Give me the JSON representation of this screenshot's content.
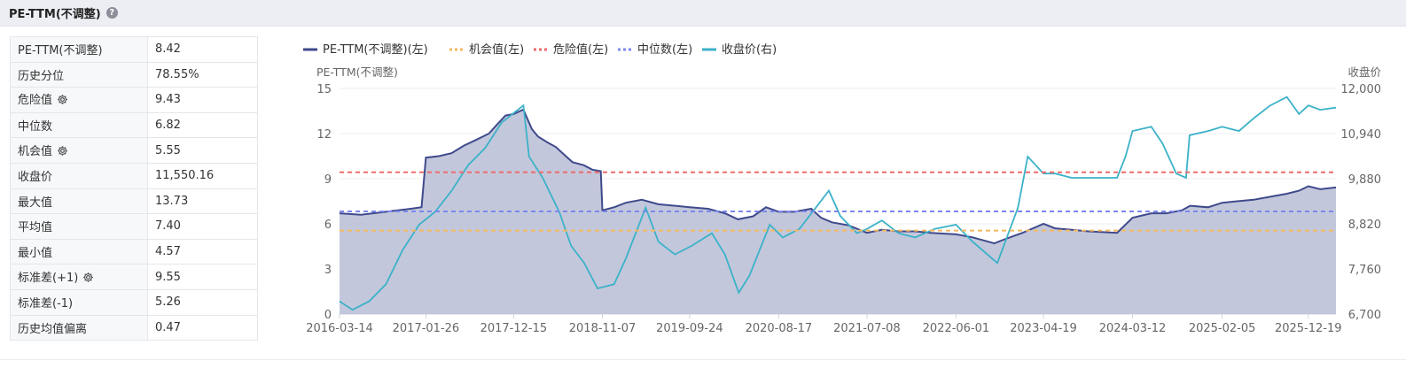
{
  "header": {
    "title": "PE-TTM(不调整)",
    "help_icon": "help-icon"
  },
  "stats": [
    {
      "label": "PE-TTM(不调整)",
      "value": "8.42",
      "gear": false
    },
    {
      "label": "历史分位",
      "value": "78.55%",
      "gear": false
    },
    {
      "label": "危险值",
      "value": "9.43",
      "gear": true
    },
    {
      "label": "中位数",
      "value": "6.82",
      "gear": false
    },
    {
      "label": "机会值",
      "value": "5.55",
      "gear": true
    },
    {
      "label": "收盘价",
      "value": "11,550.16",
      "gear": false
    },
    {
      "label": "最大值",
      "value": "13.73",
      "gear": false
    },
    {
      "label": "平均值",
      "value": "7.40",
      "gear": false
    },
    {
      "label": "最小值",
      "value": "4.57",
      "gear": false
    },
    {
      "label": "标准差(+1)",
      "value": "9.55",
      "gear": true
    },
    {
      "label": "标准差(-1)",
      "value": "5.26",
      "gear": false
    },
    {
      "label": "历史均值偏离",
      "value": "0.47",
      "gear": false
    }
  ],
  "chart_data": {
    "type": "line",
    "legend_position": "top",
    "legend": [
      {
        "name": "PE-TTM(不调整)(左)",
        "style": "solid",
        "color": "#3f4a8c"
      },
      {
        "name": "机会值(左)",
        "style": "dotted",
        "color": "#f5b860"
      },
      {
        "name": "危险值(左)",
        "style": "dotted",
        "color": "#f06a6a"
      },
      {
        "name": "中位数(左)",
        "style": "dotted",
        "color": "#7b87ee"
      },
      {
        "name": "收盘价(右)",
        "style": "solid",
        "color": "#3bb2c8"
      }
    ],
    "y_left": {
      "label": "PE-TTM(不调整)",
      "min": 0,
      "max": 15,
      "ticks": [
        "0",
        "3",
        "6",
        "9",
        "12",
        "15"
      ]
    },
    "y_right": {
      "label": "收盘价",
      "min": 6700,
      "max": 12000,
      "ticks": [
        "6,700",
        "7,760",
        "8,820",
        "9,880",
        "10,940",
        "12,000"
      ]
    },
    "x_ticks": [
      "2016-03-14",
      "2017-01-26",
      "2017-12-15",
      "2018-11-07",
      "2019-09-24",
      "2020-08-17",
      "2021-07-08",
      "2022-06-01",
      "2023-04-19",
      "2024-03-12",
      "2025-02-05",
      "2025-12-19"
    ],
    "x_range": [
      "2016-03-14",
      "2026-03-31"
    ],
    "grid": true,
    "reference_lines": {
      "danger": 9.43,
      "median": 6.82,
      "opportunity": 5.55
    },
    "pe_series": {
      "name": "PE-TTM(不调整)",
      "points": [
        [
          "2016-03-14",
          6.7
        ],
        [
          "2016-06-01",
          6.6
        ],
        [
          "2016-09-01",
          6.8
        ],
        [
          "2016-12-01",
          7.0
        ],
        [
          "2017-01-10",
          7.1
        ],
        [
          "2017-01-26",
          10.4
        ],
        [
          "2017-03-15",
          10.5
        ],
        [
          "2017-05-01",
          10.7
        ],
        [
          "2017-06-15",
          11.2
        ],
        [
          "2017-08-01",
          11.6
        ],
        [
          "2017-09-15",
          12.0
        ],
        [
          "2017-10-15",
          12.6
        ],
        [
          "2017-11-15",
          13.2
        ],
        [
          "2017-12-15",
          13.3
        ],
        [
          "2018-01-20",
          13.6
        ],
        [
          "2018-02-20",
          12.3
        ],
        [
          "2018-03-15",
          11.8
        ],
        [
          "2018-04-20",
          11.4
        ],
        [
          "2018-05-20",
          11.1
        ],
        [
          "2018-06-25",
          10.5
        ],
        [
          "2018-07-20",
          10.1
        ],
        [
          "2018-08-30",
          9.9
        ],
        [
          "2018-10-01",
          9.6
        ],
        [
          "2018-11-01",
          9.5
        ],
        [
          "2018-11-07",
          6.9
        ],
        [
          "2018-12-20",
          7.1
        ],
        [
          "2019-02-01",
          7.4
        ],
        [
          "2019-04-01",
          7.6
        ],
        [
          "2019-06-01",
          7.3
        ],
        [
          "2019-08-01",
          7.2
        ],
        [
          "2019-09-24",
          7.1
        ],
        [
          "2019-12-01",
          7.0
        ],
        [
          "2020-02-01",
          6.7
        ],
        [
          "2020-03-20",
          6.3
        ],
        [
          "2020-05-15",
          6.5
        ],
        [
          "2020-07-01",
          7.1
        ],
        [
          "2020-08-17",
          6.8
        ],
        [
          "2020-10-15",
          6.8
        ],
        [
          "2020-12-15",
          7.0
        ],
        [
          "2021-01-20",
          6.4
        ],
        [
          "2021-03-01",
          6.1
        ],
        [
          "2021-05-01",
          5.9
        ],
        [
          "2021-07-08",
          5.4
        ],
        [
          "2021-09-01",
          5.6
        ],
        [
          "2021-11-01",
          5.5
        ],
        [
          "2022-01-01",
          5.5
        ],
        [
          "2022-03-01",
          5.4
        ],
        [
          "2022-06-01",
          5.3
        ],
        [
          "2022-08-01",
          5.1
        ],
        [
          "2022-10-20",
          4.7
        ],
        [
          "2022-12-01",
          5.0
        ],
        [
          "2023-02-01",
          5.4
        ],
        [
          "2023-04-19",
          6.0
        ],
        [
          "2023-06-01",
          5.7
        ],
        [
          "2023-08-01",
          5.6
        ],
        [
          "2023-10-01",
          5.5
        ],
        [
          "2024-01-15",
          5.4
        ],
        [
          "2024-03-12",
          6.4
        ],
        [
          "2024-05-20",
          6.7
        ],
        [
          "2024-07-15",
          6.7
        ],
        [
          "2024-09-10",
          6.9
        ],
        [
          "2024-10-10",
          7.2
        ],
        [
          "2024-12-15",
          7.1
        ],
        [
          "2025-02-05",
          7.4
        ],
        [
          "2025-04-01",
          7.5
        ],
        [
          "2025-06-01",
          7.6
        ],
        [
          "2025-08-01",
          7.8
        ],
        [
          "2025-10-01",
          8.0
        ],
        [
          "2025-11-15",
          8.2
        ],
        [
          "2025-12-19",
          8.5
        ],
        [
          "2026-02-01",
          8.3
        ],
        [
          "2026-03-31",
          8.42
        ]
      ]
    },
    "price_series": {
      "name": "收盘价",
      "points": [
        [
          "2016-03-14",
          7.0
        ],
        [
          "2016-05-01",
          6.8
        ],
        [
          "2016-07-01",
          7.0
        ],
        [
          "2016-09-01",
          7.4
        ],
        [
          "2016-11-01",
          8.2
        ],
        [
          "2017-01-01",
          8.8
        ],
        [
          "2017-03-01",
          9.1
        ],
        [
          "2017-05-01",
          9.6
        ],
        [
          "2017-07-01",
          10.2
        ],
        [
          "2017-09-01",
          10.6
        ],
        [
          "2017-11-01",
          11.2
        ],
        [
          "2018-01-20",
          11.6
        ],
        [
          "2018-02-10",
          10.4
        ],
        [
          "2018-04-01",
          9.9
        ],
        [
          "2018-06-01",
          9.1
        ],
        [
          "2018-07-15",
          8.3
        ],
        [
          "2018-09-01",
          7.9
        ],
        [
          "2018-10-20",
          7.3
        ],
        [
          "2018-12-20",
          7.4
        ],
        [
          "2019-02-01",
          8.0
        ],
        [
          "2019-04-15",
          9.2
        ],
        [
          "2019-06-01",
          8.4
        ],
        [
          "2019-08-01",
          8.1
        ],
        [
          "2019-10-01",
          8.3
        ],
        [
          "2019-12-15",
          8.6
        ],
        [
          "2020-02-01",
          8.1
        ],
        [
          "2020-03-23",
          7.2
        ],
        [
          "2020-05-01",
          7.6
        ],
        [
          "2020-07-15",
          8.8
        ],
        [
          "2020-09-01",
          8.5
        ],
        [
          "2020-11-01",
          8.7
        ],
        [
          "2021-01-01",
          9.2
        ],
        [
          "2021-02-18",
          9.6
        ],
        [
          "2021-04-01",
          9.0
        ],
        [
          "2021-06-01",
          8.6
        ],
        [
          "2021-07-08",
          8.7
        ],
        [
          "2021-09-01",
          8.9
        ],
        [
          "2021-11-01",
          8.6
        ],
        [
          "2022-01-01",
          8.5
        ],
        [
          "2022-03-15",
          8.7
        ],
        [
          "2022-06-01",
          8.8
        ],
        [
          "2022-08-01",
          8.4
        ],
        [
          "2022-10-31",
          7.9
        ],
        [
          "2023-01-15",
          9.2
        ],
        [
          "2023-02-20",
          10.4
        ],
        [
          "2023-04-19",
          10.0
        ],
        [
          "2023-06-01",
          10.0
        ],
        [
          "2023-08-01",
          9.9
        ],
        [
          "2023-10-01",
          9.9
        ],
        [
          "2024-01-15",
          9.9
        ],
        [
          "2024-02-15",
          10.4
        ],
        [
          "2024-03-12",
          11.0
        ],
        [
          "2024-05-20",
          11.1
        ],
        [
          "2024-07-01",
          10.7
        ],
        [
          "2024-08-20",
          10.0
        ],
        [
          "2024-09-25",
          9.9
        ],
        [
          "2024-10-08",
          10.9
        ],
        [
          "2024-12-15",
          11.0
        ],
        [
          "2025-02-05",
          11.1
        ],
        [
          "2025-04-08",
          11.0
        ],
        [
          "2025-06-01",
          11.3
        ],
        [
          "2025-08-01",
          11.6
        ],
        [
          "2025-10-01",
          11.8
        ],
        [
          "2025-11-15",
          11.4
        ],
        [
          "2025-12-19",
          11.6
        ],
        [
          "2026-02-01",
          11.5
        ],
        [
          "2026-03-31",
          11.55
        ]
      ]
    }
  }
}
